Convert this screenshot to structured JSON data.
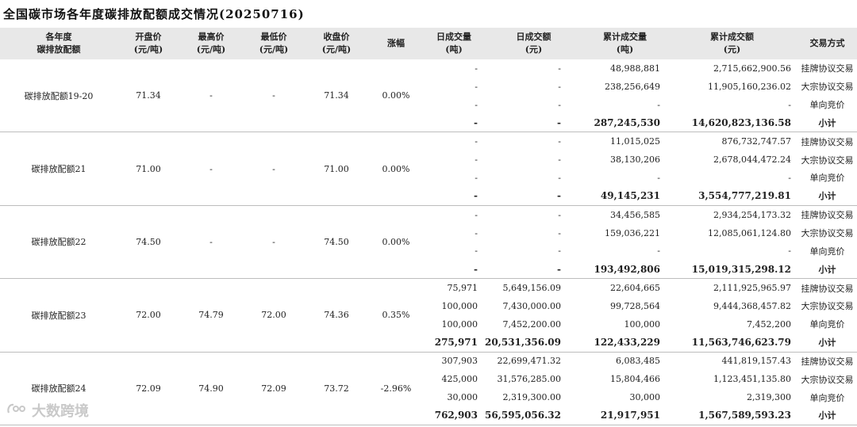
{
  "title": "全国碳市场各年度碳排放配额成交情况(20250716)",
  "headers": {
    "name": [
      "各年度",
      "碳排放配额"
    ],
    "open": [
      "开盘价",
      "(元/吨)"
    ],
    "high": [
      "最高价",
      "(元/吨)"
    ],
    "low": [
      "最低价",
      "(元/吨)"
    ],
    "close": [
      "收盘价",
      "(元/吨)"
    ],
    "change": [
      "涨幅"
    ],
    "daily_vol": [
      "日成交量",
      "(吨)"
    ],
    "daily_amt": [
      "日成交额",
      "(元)"
    ],
    "cum_vol": [
      "累计成交量",
      "(吨)"
    ],
    "cum_amt": [
      "累计成交额",
      "(元)"
    ],
    "type": [
      "交易方式"
    ]
  },
  "groups": [
    {
      "name": "碳排放配额19-20",
      "open": "71.34",
      "high": "-",
      "low": "-",
      "close": "71.34",
      "change": "0.00%",
      "rows": [
        {
          "daily_vol": "-",
          "daily_amt": "-",
          "cum_vol": "48,988,881",
          "cum_amt": "2,715,662,900.56",
          "type": "挂牌协议交易"
        },
        {
          "daily_vol": "-",
          "daily_amt": "-",
          "cum_vol": "238,256,649",
          "cum_amt": "11,905,160,236.02",
          "type": "大宗协议交易"
        },
        {
          "daily_vol": "-",
          "daily_amt": "-",
          "cum_vol": "-",
          "cum_amt": "-",
          "type": "单向竞价"
        },
        {
          "daily_vol": "-",
          "daily_amt": "-",
          "cum_vol": "287,245,530",
          "cum_amt": "14,620,823,136.58",
          "type": "小计"
        }
      ]
    },
    {
      "name": "碳排放配额21",
      "open": "71.00",
      "high": "-",
      "low": "-",
      "close": "71.00",
      "change": "0.00%",
      "rows": [
        {
          "daily_vol": "-",
          "daily_amt": "-",
          "cum_vol": "11,015,025",
          "cum_amt": "876,732,747.57",
          "type": "挂牌协议交易"
        },
        {
          "daily_vol": "-",
          "daily_amt": "-",
          "cum_vol": "38,130,206",
          "cum_amt": "2,678,044,472.24",
          "type": "大宗协议交易"
        },
        {
          "daily_vol": "-",
          "daily_amt": "-",
          "cum_vol": "-",
          "cum_amt": "-",
          "type": "单向竞价"
        },
        {
          "daily_vol": "-",
          "daily_amt": "-",
          "cum_vol": "49,145,231",
          "cum_amt": "3,554,777,219.81",
          "type": "小计"
        }
      ]
    },
    {
      "name": "碳排放配额22",
      "open": "74.50",
      "high": "-",
      "low": "-",
      "close": "74.50",
      "change": "0.00%",
      "rows": [
        {
          "daily_vol": "-",
          "daily_amt": "-",
          "cum_vol": "34,456,585",
          "cum_amt": "2,934,254,173.32",
          "type": "挂牌协议交易"
        },
        {
          "daily_vol": "-",
          "daily_amt": "-",
          "cum_vol": "159,036,221",
          "cum_amt": "12,085,061,124.80",
          "type": "大宗协议交易"
        },
        {
          "daily_vol": "-",
          "daily_amt": "-",
          "cum_vol": "-",
          "cum_amt": "-",
          "type": "单向竞价"
        },
        {
          "daily_vol": "-",
          "daily_amt": "-",
          "cum_vol": "193,492,806",
          "cum_amt": "15,019,315,298.12",
          "type": "小计"
        }
      ]
    },
    {
      "name": "碳排放配额23",
      "open": "72.00",
      "high": "74.79",
      "low": "72.00",
      "close": "74.36",
      "change": "0.35%",
      "rows": [
        {
          "daily_vol": "75,971",
          "daily_amt": "5,649,156.09",
          "cum_vol": "22,604,665",
          "cum_amt": "2,111,925,965.97",
          "type": "挂牌协议交易"
        },
        {
          "daily_vol": "100,000",
          "daily_amt": "7,430,000.00",
          "cum_vol": "99,728,564",
          "cum_amt": "9,444,368,457.82",
          "type": "大宗协议交易"
        },
        {
          "daily_vol": "100,000",
          "daily_amt": "7,452,200.00",
          "cum_vol": "100,000",
          "cum_amt": "7,452,200",
          "type": "单向竞价"
        },
        {
          "daily_vol": "275,971",
          "daily_amt": "20,531,356.09",
          "cum_vol": "122,433,229",
          "cum_amt": "11,563,746,623.79",
          "type": "小计"
        }
      ]
    },
    {
      "name": "碳排放配额24",
      "open": "72.09",
      "high": "74.90",
      "low": "72.09",
      "close": "73.72",
      "change": "-2.96%",
      "rows": [
        {
          "daily_vol": "307,903",
          "daily_amt": "22,699,471.32",
          "cum_vol": "6,083,485",
          "cum_amt": "441,819,157.43",
          "type": "挂牌协议交易"
        },
        {
          "daily_vol": "425,000",
          "daily_amt": "31,576,285.00",
          "cum_vol": "15,804,466",
          "cum_amt": "1,123,451,135.80",
          "type": "大宗协议交易"
        },
        {
          "daily_vol": "30,000",
          "daily_amt": "2,319,300.00",
          "cum_vol": "30,000",
          "cum_amt": "2,319,300",
          "type": "单向竞价"
        },
        {
          "daily_vol": "762,903",
          "daily_amt": "56,595,056.32",
          "cum_vol": "21,917,951",
          "cum_amt": "1,567,589,593.23",
          "type": "小计"
        }
      ]
    }
  ],
  "watermark": {
    "icon": "ellipsis-logo-icon",
    "text": "大数跨境"
  }
}
